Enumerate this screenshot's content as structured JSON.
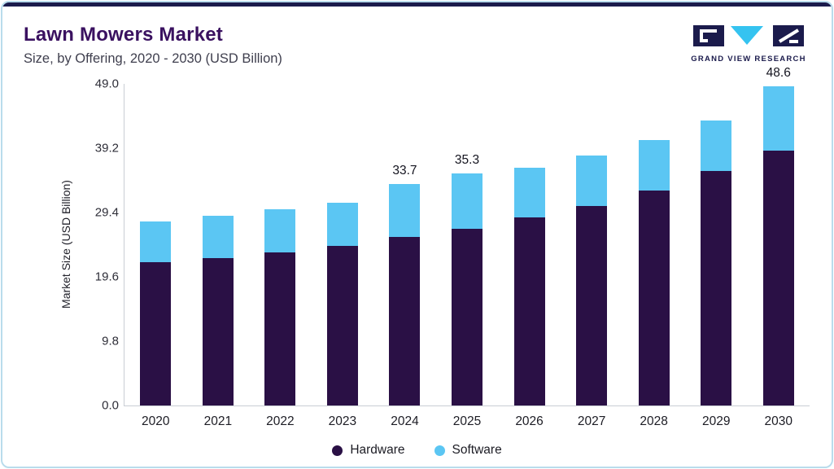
{
  "page": {
    "title": "Lawn Mowers Market",
    "subtitle": "Size, by Offering, 2020 - 2030 (USD Billion)",
    "logo_text": "GRAND VIEW RESEARCH"
  },
  "colors": {
    "accent_bar": "#1b1b4c",
    "card_border": "#b9dcec",
    "title_text": "#3a1160",
    "hardware": "#2a1045",
    "software": "#5bc6f3"
  },
  "chart_data": {
    "type": "bar",
    "stacked": true,
    "title": "Lawn Mowers Market Size, by Offering, 2020 - 2030 (USD Billion)",
    "categories": [
      "2020",
      "2021",
      "2022",
      "2023",
      "2024",
      "2025",
      "2026",
      "2027",
      "2028",
      "2029",
      "2030"
    ],
    "series": [
      {
        "name": "Hardware",
        "color": "#2a1045",
        "values": [
          21.8,
          22.5,
          23.3,
          24.3,
          25.7,
          26.9,
          28.6,
          30.4,
          32.8,
          35.7,
          38.8
        ]
      },
      {
        "name": "Software",
        "color": "#5bc6f3",
        "values": [
          6.2,
          6.4,
          6.6,
          6.6,
          8.0,
          8.4,
          7.6,
          7.7,
          7.6,
          7.7,
          9.8
        ]
      }
    ],
    "totals": [
      28.0,
      28.9,
      29.9,
      30.9,
      33.7,
      35.3,
      36.2,
      38.1,
      40.4,
      43.4,
      48.6
    ],
    "value_labels": [
      "",
      "",
      "",
      "",
      "33.7",
      "35.3",
      "",
      "",
      "",
      "",
      "48.6"
    ],
    "xlabel": "",
    "ylabel": "Market Size (USD Billion)",
    "yticks": [
      0.0,
      9.8,
      19.6,
      29.4,
      39.2,
      49.0
    ],
    "ytick_labels": [
      "0.0",
      "9.8",
      "19.6",
      "29.4",
      "39.2",
      "49.0"
    ],
    "ylim": [
      0,
      49
    ],
    "grid": false,
    "legend_position": "bottom"
  }
}
